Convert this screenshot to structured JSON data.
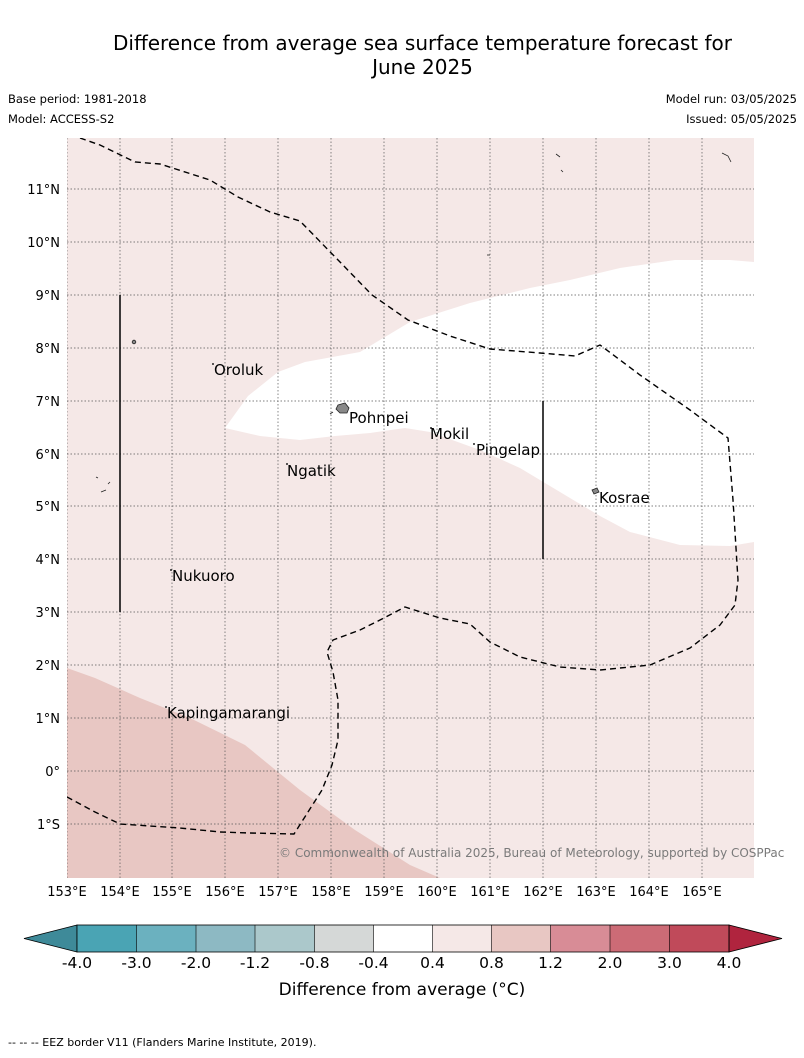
{
  "header": {
    "title_line1": "Difference from average sea surface temperature forecast for",
    "title_line2": "June 2025",
    "base_period": "Base period: 1981-2018",
    "model": "Model: ACCESS-S2",
    "model_run": "Model run: 03/05/2025",
    "issued": "Issued: 05/05/2025"
  },
  "map": {
    "lon_labels": [
      "153°E",
      "154°E",
      "155°E",
      "156°E",
      "157°E",
      "158°E",
      "159°E",
      "160°E",
      "161°E",
      "162°E",
      "163°E",
      "164°E",
      "165°E"
    ],
    "lat_labels": [
      "11°N",
      "10°N",
      "9°N",
      "8°N",
      "7°N",
      "6°N",
      "5°N",
      "4°N",
      "3°N",
      "2°N",
      "1°N",
      "0°",
      "1°S"
    ],
    "places": [
      "Oroluk",
      "Pohnpei",
      "Mokil",
      "Pingelap",
      "Ngatik",
      "Kosrae",
      "Nukuoro",
      "Kapingamarangi"
    ],
    "credit": "© Commonwealth of Australia 2025, Bureau of Meteorology, supported by COSPPac",
    "colors": {
      "band_0p4_0p8": "#f5e8e7",
      "band_0p8_1p2": "#e8c7c3",
      "neutral": "#ffffff",
      "eez_border": "#000000"
    }
  },
  "colorbar": {
    "ticks": [
      "-4.0",
      "-3.0",
      "-2.0",
      "-1.2",
      "-0.8",
      "-0.4",
      "0.4",
      "0.8",
      "1.2",
      "2.0",
      "3.0",
      "4.0"
    ],
    "colors": [
      "#3e8a99",
      "#4aa4b4",
      "#6bb1bf",
      "#8db9c3",
      "#abc8cb",
      "#d5d8d7",
      "#ffffff",
      "#f5e8e7",
      "#e8c7c3",
      "#d88c96",
      "#cc6b76",
      "#c04a5a",
      "#b0243e"
    ],
    "label": "Difference from average (°C)"
  },
  "footnote": "--  --  -- EEZ border V11 (Flanders Marine Institute, 2019)."
}
